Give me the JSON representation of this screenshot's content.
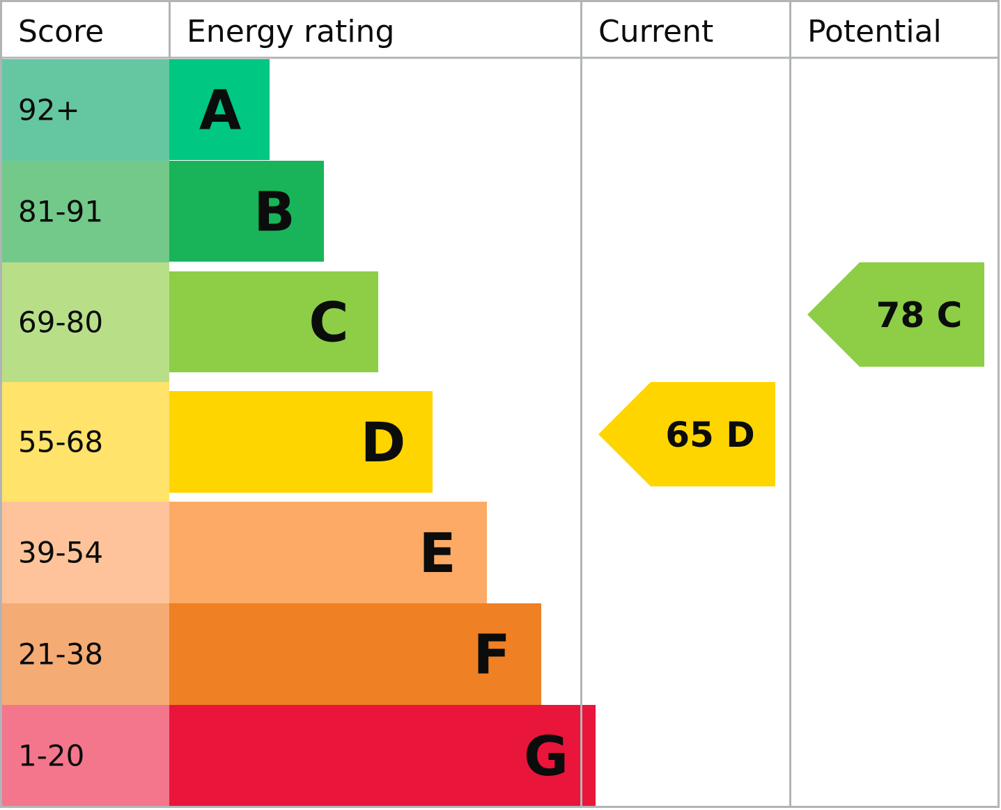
{
  "header": {
    "score": "Score",
    "energy_rating": "Energy rating",
    "current": "Current",
    "potential": "Potential"
  },
  "chart_data": {
    "type": "bar",
    "bands": [
      {
        "score": "92+",
        "letter": "A",
        "score_color": "#65c7a1",
        "bar_color": "#00c781",
        "width_rank": 1
      },
      {
        "score": "81-91",
        "letter": "B",
        "score_color": "#72c98a",
        "bar_color": "#19b459",
        "width_rank": 2
      },
      {
        "score": "69-80",
        "letter": "C",
        "score_color": "#b8df88",
        "bar_color": "#8dce46",
        "width_rank": 3
      },
      {
        "score": "55-68",
        "letter": "D",
        "score_color": "#ffe36b",
        "bar_color": "#ffd500",
        "width_rank": 4
      },
      {
        "score": "39-54",
        "letter": "E",
        "score_color": "#fec39a",
        "bar_color": "#fcaa65",
        "width_rank": 5
      },
      {
        "score": "21-38",
        "letter": "F",
        "score_color": "#f4ab74",
        "bar_color": "#ef8023",
        "width_rank": 6
      },
      {
        "score": "1-20",
        "letter": "G",
        "score_color": "#f3768d",
        "bar_color": "#e9153b",
        "width_rank": 7
      }
    ],
    "current": {
      "value": 65,
      "letter": "D",
      "label": "65 D",
      "color": "#ffd500"
    },
    "potential": {
      "value": 78,
      "letter": "C",
      "label": "78 C",
      "color": "#8dce46"
    }
  }
}
